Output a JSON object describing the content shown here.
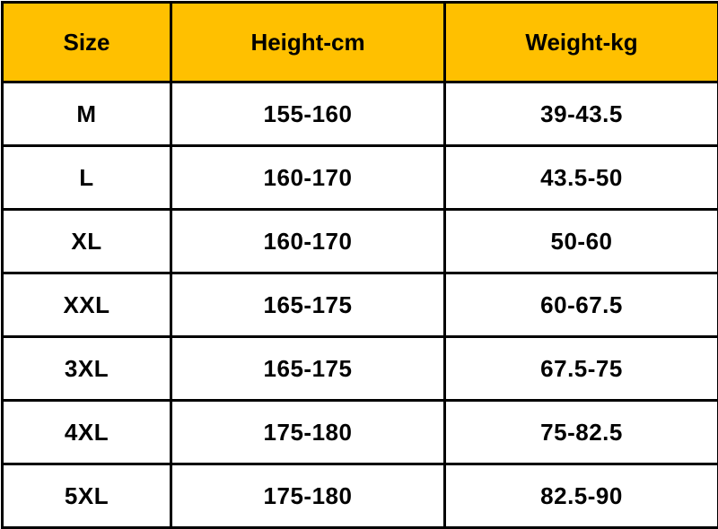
{
  "colors": {
    "header_background": "#FFC000",
    "border": "#000000"
  },
  "headers": [
    "Size",
    "Height-cm",
    "Weight-kg"
  ],
  "rows": [
    [
      "M",
      "155-160",
      "39-43.5"
    ],
    [
      "L",
      "160-170",
      "43.5-50"
    ],
    [
      "XL",
      "160-170",
      "50-60"
    ],
    [
      "XXL",
      "165-175",
      "60-67.5"
    ],
    [
      "3XL",
      "165-175",
      "67.5-75"
    ],
    [
      "4XL",
      "175-180",
      "75-82.5"
    ],
    [
      "5XL",
      "175-180",
      "82.5-90"
    ]
  ]
}
